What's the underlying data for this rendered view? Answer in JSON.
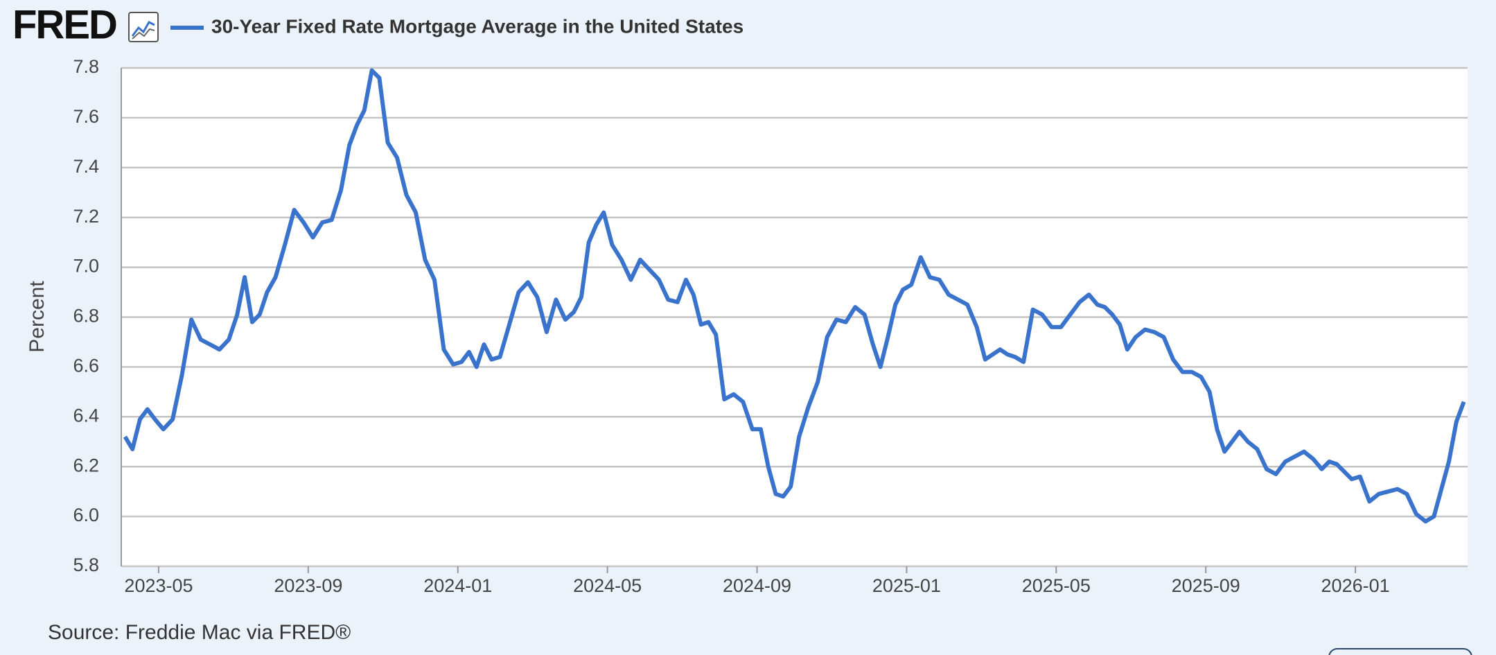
{
  "logo": "FRED",
  "source": "Source: Freddie Mac via FRED®",
  "chart_data": {
    "type": "line",
    "ylabel": "Percent",
    "ylim": [
      5.8,
      7.8
    ],
    "yticks": [
      5.8,
      {
        "value": 6,
        "label": "6.0"
      },
      6.2,
      6.4,
      6.6,
      6.8,
      {
        "value": 7,
        "label": "7.0"
      },
      7.2,
      7.4,
      7.6,
      7.8
    ],
    "xlim": [
      "2023-04",
      "2026-03"
    ],
    "xticks": [
      "2023-05",
      "2023-09",
      "2024-01",
      "2024-05",
      "2024-09",
      "2025-01",
      "2025-05",
      "2025-09",
      "2026-01"
    ],
    "grid": true,
    "x": [
      "2023-04",
      "2023-04",
      "2023-04",
      "2023-04",
      "2023-04",
      "2023-05",
      "2023-05",
      "2023-05",
      "2023-05",
      "2023-06",
      "2023-06",
      "2023-06",
      "2023-06",
      "2023-07",
      "2023-07",
      "2023-07",
      "2023-07",
      "2023-07",
      "2023-08",
      "2023-08",
      "2023-08",
      "2023-08",
      "2023-09",
      "2023-09",
      "2023-09",
      "2023-09",
      "2023-10",
      "2023-10",
      "2023-10",
      "2023-10",
      "2023-10",
      "2023-11",
      "2023-11",
      "2023-11",
      "2023-11",
      "2023-12",
      "2023-12",
      "2023-12",
      "2023-12",
      "2024-01",
      "2024-01",
      "2024-01",
      "2024-01",
      "2024-01",
      "2024-02",
      "2024-02",
      "2024-02",
      "2024-02",
      "2024-03",
      "2024-03",
      "2024-03",
      "2024-03",
      "2024-04",
      "2024-04",
      "2024-04",
      "2024-04",
      "2024-04",
      "2024-05",
      "2024-05",
      "2024-05",
      "2024-05",
      "2024-06",
      "2024-06",
      "2024-06",
      "2024-06",
      "2024-07",
      "2024-07",
      "2024-07",
      "2024-07",
      "2024-07",
      "2024-08",
      "2024-08",
      "2024-08",
      "2024-08",
      "2024-09",
      "2024-09",
      "2024-09",
      "2024-09",
      "2024-09",
      "2024-10",
      "2024-10",
      "2024-10",
      "2024-10",
      "2024-11",
      "2024-11",
      "2024-11",
      "2024-11",
      "2024-12",
      "2024-12",
      "2024-12",
      "2024-12",
      "2024-12",
      "2025-01",
      "2025-01",
      "2025-01",
      "2025-01",
      "2025-02",
      "2025-02",
      "2025-02",
      "2025-02",
      "2025-03",
      "2025-03",
      "2025-03",
      "2025-03",
      "2025-03",
      "2025-04",
      "2025-04",
      "2025-04",
      "2025-04",
      "2025-05",
      "2025-05",
      "2025-05",
      "2025-05",
      "2025-06",
      "2025-06",
      "2025-06",
      "2025-06",
      "2025-06",
      "2025-07",
      "2025-07",
      "2025-07",
      "2025-07",
      "2025-08",
      "2025-08",
      "2025-08",
      "2025-08",
      "2025-09",
      "2025-09",
      "2025-09",
      "2025-09",
      "2025-09",
      "2025-10",
      "2025-10",
      "2025-10",
      "2025-10",
      "2025-11",
      "2025-11",
      "2025-11",
      "2025-11",
      "2025-12",
      "2025-12",
      "2025-12",
      "2025-12",
      "2025-12",
      "2026-01",
      "2026-01",
      "2026-01",
      "2026-01",
      "2026-02",
      "2026-02",
      "2026-02",
      "2026-02",
      "2026-03",
      "2026-03",
      "2026-03",
      "2026-03",
      "2026-03"
    ],
    "series": [
      {
        "name": "30-Year Fixed Rate Mortgage Average in the United States",
        "color": "#3a73cc",
        "values": [
          6.32,
          6.27,
          6.39,
          6.43,
          6.39,
          6.35,
          6.39,
          6.57,
          6.79,
          6.71,
          6.69,
          6.67,
          6.71,
          6.81,
          6.96,
          6.78,
          6.81,
          6.9,
          6.96,
          7.09,
          7.23,
          7.18,
          7.12,
          7.18,
          7.19,
          7.31,
          7.49,
          7.57,
          7.63,
          7.79,
          7.76,
          7.5,
          7.44,
          7.29,
          7.22,
          7.03,
          6.95,
          6.67,
          6.61,
          6.62,
          6.66,
          6.6,
          6.69,
          6.63,
          6.64,
          6.77,
          6.9,
          6.94,
          6.88,
          6.74,
          6.87,
          6.79,
          6.82,
          6.88,
          7.1,
          7.17,
          7.22,
          7.09,
          7.03,
          6.95,
          7.03,
          6.99,
          6.95,
          6.87,
          6.86,
          6.95,
          6.89,
          6.77,
          6.78,
          6.73,
          6.47,
          6.49,
          6.46,
          6.35,
          6.35,
          6.2,
          6.09,
          6.08,
          6.12,
          6.32,
          6.44,
          6.54,
          6.72,
          6.79,
          6.78,
          6.84,
          6.81,
          6.69,
          6.6,
          6.72,
          6.85,
          6.91,
          6.93,
          7.04,
          6.96,
          6.95,
          6.89,
          6.87,
          6.85,
          6.76,
          6.63,
          6.65,
          6.67,
          6.65,
          6.64,
          6.62,
          6.83,
          6.81,
          6.76,
          6.76,
          6.81,
          6.86,
          6.89,
          6.85,
          6.84,
          6.81,
          6.77,
          6.67,
          6.72,
          6.75,
          6.74,
          6.72,
          6.63,
          6.58,
          6.58,
          6.56,
          6.5,
          6.35,
          6.26,
          6.3,
          6.34,
          6.3,
          6.27,
          6.19,
          6.17,
          6.22,
          6.24,
          6.26,
          6.23,
          6.19,
          6.22,
          6.21,
          6.18,
          6.15,
          6.16,
          6.06,
          6.09,
          6.1,
          6.11,
          6.09,
          6.01,
          5.98,
          6.0,
          6.11,
          6.22,
          6.38,
          6.46
        ]
      }
    ]
  }
}
